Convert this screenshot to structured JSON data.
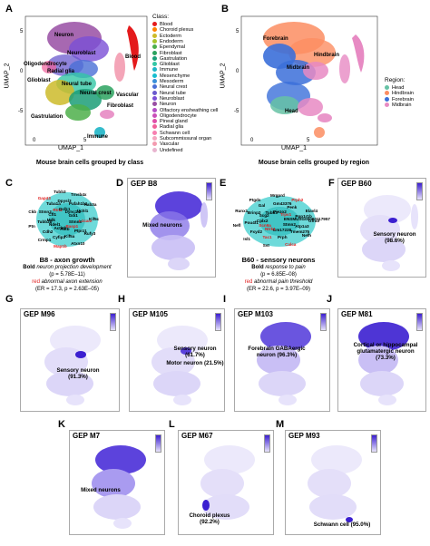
{
  "panels": {
    "A": {
      "letter": "A",
      "caption": "Mouse brain cells grouped by class",
      "xlabel": "UMAP_1",
      "ylabel": "UMAP_2",
      "legend_title": "Class:",
      "legend": [
        {
          "name": "Blood",
          "color": "#e41a1c"
        },
        {
          "name": "Choroid plexus",
          "color": "#ff7f00"
        },
        {
          "name": "Ectoderm",
          "color": "#cdbb2a"
        },
        {
          "name": "Endoderm",
          "color": "#a6c52c"
        },
        {
          "name": "Ependymal",
          "color": "#4daf4a"
        },
        {
          "name": "Fibroblast",
          "color": "#2ca25f"
        },
        {
          "name": "Gastrulation",
          "color": "#1b9e77"
        },
        {
          "name": "Glioblast",
          "color": "#33c7a5"
        },
        {
          "name": "Immune",
          "color": "#1fb5c7"
        },
        {
          "name": "Mesenchyme",
          "color": "#17becf"
        },
        {
          "name": "Mesoderm",
          "color": "#3a8fd9"
        },
        {
          "name": "Neural crest",
          "color": "#4a6fd6"
        },
        {
          "name": "Neural tube",
          "color": "#6a5acd"
        },
        {
          "name": "Neuroblast",
          "color": "#7b4fd6"
        },
        {
          "name": "Neuron",
          "color": "#984ea3"
        },
        {
          "name": "Olfactory ensheathing cell",
          "color": "#b34fc7"
        },
        {
          "name": "Oligodendrocyte",
          "color": "#c94fb9"
        },
        {
          "name": "Pineal gland",
          "color": "#e04fa8"
        },
        {
          "name": "Radial glia",
          "color": "#f0609a"
        },
        {
          "name": "Schwann cell",
          "color": "#f77fb0"
        },
        {
          "name": "Subcommissural organ",
          "color": "#f4a6c0"
        },
        {
          "name": "Vascular",
          "color": "#f39bb0"
        },
        {
          "name": "Undefined",
          "color": "#e8b4cf"
        }
      ],
      "labels": [
        "Neuron",
        "Neuroblast",
        "Oligodendrocyte",
        "Radial glia",
        "Glioblast",
        "Neural tube",
        "Neural crest",
        "Vascular",
        "Fibroblast",
        "Gastrulation",
        "Immune",
        "Blood"
      ],
      "yticks": [
        "5",
        "0",
        "-5"
      ],
      "xticks": [
        "0",
        "5"
      ]
    },
    "B": {
      "letter": "B",
      "caption": "Mouse brain cells grouped by region",
      "xlabel": "UMAP_1",
      "ylabel": "UMAP_2",
      "legend_title": "Region:",
      "legend": [
        {
          "name": "Head",
          "color": "#66c2a5"
        },
        {
          "name": "Hindbrain",
          "color": "#fc8d62"
        },
        {
          "name": "Forebrain",
          "color": "#3b6fd9"
        },
        {
          "name": "Midbrain",
          "color": "#e78ac3"
        }
      ],
      "labels": [
        "Forebrain",
        "Hindbrain",
        "Midbrain",
        "Head"
      ],
      "yticks": [
        "5",
        "0",
        "-5"
      ],
      "xticks": [
        "0",
        "5"
      ]
    },
    "C": {
      "letter": "C",
      "title": "B8 - axon growth",
      "line1_bold": "Bold",
      "line1_italic": "neuron projection development",
      "line2": "(p = 5.78E–11)",
      "line3_red": "red",
      "line3_italic": "abnormal axon extension",
      "line4": "(ER = 17.3, p = 2.63E–05)",
      "genes": [
        "Kif5c",
        "Ptprz1",
        "Actb",
        "Rufy3",
        "Kif5a",
        "Actl6b",
        "Atxn10",
        "Cyfip2",
        "Ndel1",
        "Map1b",
        "Cdh2",
        "Mdk",
        "Crmp1",
        "Tubb2b",
        "Cfl1",
        "Ptn",
        "Stmn2",
        "Rtn4",
        "Ckb",
        "Tuba1a",
        "Dclk1",
        "Gap43",
        "Dpysl3",
        "Dync1i2",
        "Tubb3",
        "Pafah1b1",
        "Gdi1",
        "Tmsb4x",
        "Uchl1",
        "Stmn3",
        "Rab3a",
        "L1cam",
        "Basp1"
      ]
    },
    "D": {
      "letter": "D",
      "title": "GEP B8",
      "note": "Mixed neurons"
    },
    "E": {
      "letter": "E",
      "title": "B60 - sensory neurons",
      "line1_bold": "Bold",
      "line1_italic": "response to pain",
      "line2": "(p = 6.85E–08)",
      "line3_red": "red",
      "line3_italic": "abnormal pain threshold",
      "line4": "(ER = 22.6, p = 3.97E–09)",
      "genes": [
        "Gfra3",
        "Tmem275",
        "Gm17228",
        "Nefh",
        "Prph",
        "Ntrk1",
        "Calca",
        "Tac1",
        "Scn9a",
        "Sst",
        "Fxyd2",
        "Cplx2",
        "Isl1",
        "Pou4f1",
        "Scg2",
        "Nefl",
        "Brinp2",
        "Tubb3",
        "Runx1",
        "Gal",
        "Piezo2",
        "Ptgds",
        "Gm43376",
        "Trpv1",
        "Mrgprd",
        "Penk",
        "ENSMUSG00000117957",
        "Prph2",
        "Ppp1r1b",
        "Stmn2",
        "Elavl4",
        "Atp1a3"
      ]
    },
    "F": {
      "letter": "F",
      "title": "GEP B60",
      "note": "Sensory neuron (98.6%)"
    },
    "G": {
      "letter": "G",
      "title": "GEP M96",
      "note": "Sensory neuron (91.3%)"
    },
    "H": {
      "letter": "H",
      "title": "GEP M105",
      "note1": "Sensory neuron (61.7%)",
      "note2": "Motor neuron (21.5%)"
    },
    "I": {
      "letter": "I",
      "title": "GEP M103",
      "note": "Forebrain GABAergic neuron (96.3%)"
    },
    "J": {
      "letter": "J",
      "title": "GEP M81",
      "note": "Cortical or hippocampal glutamatergic neuron (73.3%)"
    },
    "K": {
      "letter": "K",
      "title": "GEP M7",
      "note": "Mixed neurons"
    },
    "L": {
      "letter": "L",
      "title": "GEP M67",
      "note": "Choroid plexus (92.2%)"
    },
    "M": {
      "letter": "M",
      "title": "GEP M93",
      "note": "Schwann cell (95.0%)"
    }
  },
  "colors": {
    "gep_high": "#3b1fd0",
    "gep_low": "#e7e3fb",
    "red_gene": "#e02020"
  }
}
